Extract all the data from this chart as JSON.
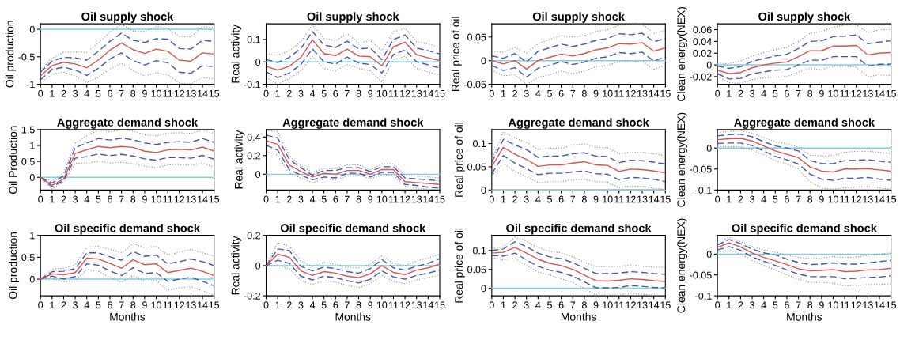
{
  "chart_data": [
    {
      "type": "line",
      "title": "Oil supply shock",
      "ylabel": "Oil production",
      "x": [
        0,
        1,
        2,
        3,
        4,
        5,
        6,
        7,
        8,
        9,
        10,
        11,
        12,
        13,
        14,
        15
      ],
      "xlim": [
        0,
        15
      ],
      "xticks": [
        0,
        1,
        2,
        3,
        4,
        5,
        6,
        7,
        8,
        9,
        10,
        11,
        12,
        13,
        14,
        15
      ],
      "ylim": [
        -1,
        0.1
      ],
      "yticks": [
        -1,
        -0.5,
        0
      ],
      "ref_lines": [
        {
          "axis": "y",
          "value": 0,
          "color": "#7fcfe6"
        }
      ],
      "series": [
        {
          "color": "#888888",
          "line_style": "dotted",
          "values": [
            -0.75,
            -0.52,
            -0.42,
            -0.41,
            -0.42,
            -0.25,
            -0.05,
            0.09,
            -0.03,
            -0.04,
            0.05,
            0.02,
            -0.13,
            -0.14,
            0.05,
            0.03
          ]
        },
        {
          "color": "#888888",
          "line_style": "dotted",
          "values": [
            -0.98,
            -0.82,
            -0.78,
            -0.85,
            -0.97,
            -0.87,
            -0.72,
            -0.62,
            -0.75,
            -0.85,
            -0.79,
            -0.83,
            -0.98,
            -0.99,
            -0.88,
            -0.9
          ]
        },
        {
          "color": "#4455b0",
          "line_style": "dashed",
          "values": [
            -0.78,
            -0.58,
            -0.51,
            -0.52,
            -0.56,
            -0.4,
            -0.22,
            -0.07,
            -0.2,
            -0.24,
            -0.17,
            -0.18,
            -0.35,
            -0.36,
            -0.2,
            -0.22
          ]
        },
        {
          "color": "#4455b0",
          "line_style": "dashed",
          "values": [
            -0.92,
            -0.73,
            -0.69,
            -0.74,
            -0.84,
            -0.71,
            -0.54,
            -0.43,
            -0.57,
            -0.65,
            -0.57,
            -0.61,
            -0.78,
            -0.8,
            -0.66,
            -0.68
          ]
        },
        {
          "color": "#d9534f",
          "line_style": "solid",
          "values": [
            -0.85,
            -0.66,
            -0.6,
            -0.63,
            -0.7,
            -0.56,
            -0.38,
            -0.25,
            -0.37,
            -0.44,
            -0.36,
            -0.4,
            -0.56,
            -0.58,
            -0.43,
            -0.45
          ]
        }
      ]
    },
    {
      "type": "line",
      "title": "Oil supply shock",
      "ylabel": "Real activity",
      "x": [
        0,
        1,
        2,
        3,
        4,
        5,
        6,
        7,
        8,
        9,
        10,
        11,
        12,
        13,
        14,
        15
      ],
      "xlim": [
        0,
        15
      ],
      "xticks": [
        0,
        1,
        2,
        3,
        4,
        5,
        6,
        7,
        8,
        9,
        10,
        11,
        12,
        13,
        14,
        15
      ],
      "ylim": [
        -0.1,
        0.17
      ],
      "yticks": [
        -0.1,
        0,
        0.1
      ],
      "ref_lines": [
        {
          "axis": "y",
          "value": 0,
          "color": "#7fcfe6"
        }
      ],
      "series": [
        {
          "color": "#888888",
          "line_style": "dotted",
          "values": [
            0.035,
            0.03,
            0.05,
            0.09,
            0.165,
            0.105,
            0.095,
            0.125,
            0.085,
            0.095,
            0.05,
            0.135,
            0.15,
            0.09,
            0.08,
            0.065
          ]
        },
        {
          "color": "#888888",
          "line_style": "dotted",
          "values": [
            -0.07,
            -0.1,
            -0.075,
            -0.04,
            0.025,
            -0.03,
            -0.04,
            -0.012,
            -0.03,
            -0.04,
            -0.09,
            0.01,
            0.025,
            -0.03,
            -0.045,
            -0.06
          ]
        },
        {
          "color": "#4455b0",
          "line_style": "dashed",
          "values": [
            0.01,
            -0.003,
            0.02,
            0.06,
            0.135,
            0.075,
            0.065,
            0.092,
            0.058,
            0.062,
            0.01,
            0.1,
            0.12,
            0.062,
            0.05,
            0.035
          ]
        },
        {
          "color": "#4455b0",
          "line_style": "dashed",
          "values": [
            -0.045,
            -0.07,
            -0.05,
            -0.012,
            0.058,
            0,
            -0.01,
            0.022,
            -0.005,
            -0.012,
            -0.05,
            0.033,
            0.053,
            0,
            -0.013,
            -0.028
          ]
        },
        {
          "color": "#d9534f",
          "line_style": "solid",
          "values": [
            -0.02,
            -0.037,
            -0.02,
            0.02,
            0.098,
            0.037,
            0.028,
            0.057,
            0.026,
            0.023,
            -0.018,
            0.067,
            0.088,
            0.032,
            0.018,
            0.005
          ]
        }
      ]
    },
    {
      "type": "line",
      "title": "Oil supply shock",
      "ylabel": "Real price of oil",
      "x": [
        0,
        1,
        2,
        3,
        4,
        5,
        6,
        7,
        8,
        9,
        10,
        11,
        12,
        13,
        14,
        15
      ],
      "xlim": [
        0,
        15
      ],
      "xticks": [
        0,
        1,
        2,
        3,
        4,
        5,
        6,
        7,
        8,
        9,
        10,
        11,
        12,
        13,
        14,
        15
      ],
      "ylim": [
        -0.05,
        0.078
      ],
      "yticks": [
        -0.05,
        0,
        0.05
      ],
      "ref_lines": [
        {
          "axis": "y",
          "value": 0,
          "color": "#7fcfe6"
        }
      ],
      "series": [
        {
          "color": "#888888",
          "line_style": "dotted",
          "values": [
            0.02,
            0.018,
            0.028,
            0.016,
            0.036,
            0.045,
            0.053,
            0.05,
            0.053,
            0.062,
            0.065,
            0.075,
            0.076,
            0.077,
            0.058,
            0.064
          ]
        },
        {
          "color": "#888888",
          "line_style": "dotted",
          "values": [
            -0.02,
            -0.032,
            -0.03,
            -0.05,
            -0.036,
            -0.03,
            -0.022,
            -0.028,
            -0.022,
            -0.013,
            -0.01,
            -0.002,
            -0.002,
            -0.001,
            -0.018,
            -0.01
          ]
        },
        {
          "color": "#4455b0",
          "line_style": "dashed",
          "values": [
            0.01,
            0.005,
            0.015,
            -0.003,
            0.02,
            0.027,
            0.035,
            0.03,
            0.035,
            0.043,
            0.047,
            0.057,
            0.055,
            0.058,
            0.04,
            0.047
          ]
        },
        {
          "color": "#4455b0",
          "line_style": "dashed",
          "values": [
            -0.01,
            -0.021,
            -0.015,
            -0.035,
            -0.016,
            -0.01,
            -0.002,
            -0.008,
            -0.003,
            0.005,
            0.008,
            0.017,
            0.015,
            0.018,
            -0.001,
            0.008
          ]
        },
        {
          "color": "#d9534f",
          "line_style": "solid",
          "values": [
            0,
            -0.007,
            0,
            -0.018,
            0,
            0.007,
            0.014,
            0.01,
            0.015,
            0.023,
            0.027,
            0.036,
            0.035,
            0.038,
            0.02,
            0.027
          ]
        }
      ]
    },
    {
      "type": "line",
      "title": "Oil supply shock",
      "ylabel": "Clean energy(NEX)",
      "x": [
        0,
        1,
        2,
        3,
        4,
        5,
        6,
        7,
        8,
        9,
        10,
        11,
        12,
        13,
        14,
        15
      ],
      "xlim": [
        0,
        15
      ],
      "xticks": [
        0,
        1,
        2,
        3,
        4,
        5,
        6,
        7,
        8,
        9,
        10,
        11,
        12,
        13,
        14,
        15
      ],
      "ylim": [
        -0.033,
        0.07
      ],
      "yticks": [
        -0.02,
        0,
        0.02,
        0.04,
        0.06
      ],
      "ref_lines": [
        {
          "axis": "y",
          "value": 0,
          "color": "#7fcfe6"
        }
      ],
      "series": [
        {
          "color": "#888888",
          "line_style": "dotted",
          "values": [
            0.003,
            0.002,
            0.007,
            0.015,
            0.021,
            0.026,
            0.03,
            0.04,
            0.054,
            0.057,
            0.064,
            0.068,
            0.068,
            0.055,
            0.06,
            0.06
          ]
        },
        {
          "color": "#888888",
          "line_style": "dotted",
          "values": [
            -0.02,
            -0.03,
            -0.032,
            -0.025,
            -0.022,
            -0.021,
            -0.02,
            -0.012,
            -0.006,
            -0.008,
            -0.002,
            -0.002,
            -0.004,
            -0.02,
            -0.017,
            -0.018
          ]
        },
        {
          "color": "#4455b0",
          "line_style": "dashed",
          "values": [
            -0.002,
            -0.006,
            -0.003,
            0.006,
            0.011,
            0.015,
            0.018,
            0.028,
            0.04,
            0.041,
            0.048,
            0.049,
            0.051,
            0.036,
            0.039,
            0.041
          ]
        },
        {
          "color": "#4455b0",
          "line_style": "dashed",
          "values": [
            -0.015,
            -0.024,
            -0.023,
            -0.015,
            -0.012,
            -0.009,
            -0.008,
            0,
            0.008,
            0.008,
            0.014,
            0.014,
            0.014,
            -0.002,
            0.001,
            0.001
          ]
        },
        {
          "color": "#d9534f",
          "line_style": "solid",
          "values": [
            -0.009,
            -0.015,
            -0.013,
            -0.005,
            0,
            0.003,
            0.005,
            0.014,
            0.024,
            0.024,
            0.032,
            0.032,
            0.033,
            0.017,
            0.02,
            0.021
          ]
        }
      ]
    },
    {
      "type": "line",
      "title": "Aggregate demand shock",
      "ylabel": "Oil Production",
      "x": [
        0,
        1,
        2,
        3,
        4,
        5,
        6,
        7,
        8,
        9,
        10,
        11,
        12,
        13,
        14,
        15
      ],
      "xlim": [
        0,
        15
      ],
      "xticks": [
        0,
        1,
        2,
        3,
        4,
        5,
        6,
        7,
        8,
        9,
        10,
        11,
        12,
        13,
        14,
        15
      ],
      "ylim": [
        -0.4,
        1.5
      ],
      "yticks": [
        0,
        0.5,
        1,
        1.5
      ],
      "ref_lines": [
        {
          "axis": "y",
          "value": 0,
          "color": "#7fcfe6"
        }
      ],
      "series": [
        {
          "color": "#888888",
          "line_style": "dotted",
          "values": [
            0,
            -0.12,
            0.15,
            1.07,
            1.3,
            1.48,
            1.44,
            1.49,
            1.45,
            1.34,
            1.3,
            1.39,
            1.4,
            1.38,
            1.49,
            1.38
          ]
        },
        {
          "color": "#888888",
          "line_style": "dotted",
          "values": [
            0,
            -0.37,
            -0.15,
            0.44,
            0.45,
            0.5,
            0.45,
            0.47,
            0.43,
            0.35,
            0.3,
            0.39,
            0.4,
            0.38,
            0.44,
            0.32
          ]
        },
        {
          "color": "#4455b0",
          "line_style": "dashed",
          "values": [
            0,
            -0.18,
            0.05,
            0.93,
            1.08,
            1.22,
            1.17,
            1.23,
            1.18,
            1.08,
            1.03,
            1.1,
            1.12,
            1.1,
            1.22,
            1.1
          ]
        },
        {
          "color": "#4455b0",
          "line_style": "dashed",
          "values": [
            0,
            -0.3,
            -0.1,
            0.6,
            0.65,
            0.73,
            0.68,
            0.72,
            0.67,
            0.58,
            0.54,
            0.62,
            0.62,
            0.6,
            0.69,
            0.57
          ]
        },
        {
          "color": "#d9534f",
          "line_style": "solid",
          "values": [
            0,
            -0.25,
            -0.05,
            0.75,
            0.87,
            0.97,
            0.93,
            0.97,
            0.94,
            0.82,
            0.78,
            0.86,
            0.88,
            0.86,
            0.95,
            0.82
          ]
        }
      ]
    },
    {
      "type": "line",
      "title": "Aggregate demand shock",
      "ylabel": "Real activity",
      "x": [
        0,
        1,
        2,
        3,
        4,
        5,
        6,
        7,
        8,
        9,
        10,
        11,
        12,
        13,
        14,
        15
      ],
      "xlim": [
        0,
        15
      ],
      "xticks": [
        0,
        1,
        2,
        3,
        4,
        5,
        6,
        7,
        8,
        9,
        10,
        11,
        12,
        13,
        14,
        15
      ],
      "ylim": [
        -0.17,
        0.48
      ],
      "yticks": [
        0,
        0.2,
        0.4
      ],
      "ref_lines": [
        {
          "axis": "y",
          "value": 0,
          "color": "#7fcfe6"
        }
      ],
      "series": [
        {
          "color": "#888888",
          "line_style": "dotted",
          "values": [
            0.47,
            0.46,
            0.2,
            0.09,
            0.02,
            0.06,
            0.06,
            0.1,
            0.1,
            0.05,
            0.11,
            0.11,
            -0.01,
            -0.02,
            -0.03,
            -0.04
          ]
        },
        {
          "color": "#888888",
          "line_style": "dotted",
          "values": [
            0.25,
            0.2,
            0.01,
            -0.04,
            -0.09,
            -0.05,
            -0.06,
            -0.02,
            -0.01,
            -0.05,
            -0.01,
            -0.01,
            -0.13,
            -0.15,
            -0.16,
            -0.17
          ]
        },
        {
          "color": "#4455b0",
          "line_style": "dashed",
          "values": [
            0.42,
            0.39,
            0.16,
            0.07,
            -0.01,
            0.04,
            0.04,
            0.07,
            0.07,
            0.03,
            0.08,
            0.08,
            -0.04,
            -0.05,
            -0.06,
            -0.07
          ]
        },
        {
          "color": "#4455b0",
          "line_style": "dashed",
          "values": [
            0.31,
            0.26,
            0.05,
            -0.01,
            -0.06,
            -0.03,
            -0.04,
            0.01,
            0.01,
            -0.03,
            0.02,
            0.02,
            -0.11,
            -0.12,
            -0.14,
            -0.15
          ]
        },
        {
          "color": "#d9534f",
          "line_style": "solid",
          "values": [
            0.36,
            0.32,
            0.1,
            0.03,
            -0.03,
            0.01,
            0,
            0.04,
            0.04,
            0,
            0.05,
            0.05,
            -0.08,
            -0.09,
            -0.1,
            -0.11
          ]
        }
      ]
    },
    {
      "type": "line",
      "title": "Aggregate demand shock",
      "ylabel": "Real price of oil",
      "x": [
        0,
        1,
        2,
        3,
        4,
        5,
        6,
        7,
        8,
        9,
        10,
        11,
        12,
        13,
        14,
        15
      ],
      "xlim": [
        0,
        15
      ],
      "xticks": [
        0,
        1,
        2,
        3,
        4,
        5,
        6,
        7,
        8,
        9,
        10,
        11,
        12,
        13,
        14,
        15
      ],
      "ylim": [
        0,
        0.13
      ],
      "yticks": [
        0,
        0.05,
        0.1
      ],
      "ref_lines": [
        {
          "axis": "y",
          "value": 0,
          "color": "#7fcfe6"
        }
      ],
      "series": [
        {
          "color": "#888888",
          "line_style": "dotted",
          "values": [
            0.065,
            0.125,
            0.112,
            0.102,
            0.087,
            0.09,
            0.09,
            0.097,
            0.099,
            0.092,
            0.091,
            0.078,
            0.081,
            0.081,
            0.078,
            0.074
          ]
        },
        {
          "color": "#888888",
          "line_style": "dotted",
          "values": [
            0.03,
            0.057,
            0.04,
            0.029,
            0.016,
            0.018,
            0.018,
            0.022,
            0.023,
            0.018,
            0.017,
            0.005,
            0.009,
            0.008,
            0.004,
            0.001
          ]
        },
        {
          "color": "#4455b0",
          "line_style": "dashed",
          "values": [
            0.06,
            0.109,
            0.097,
            0.087,
            0.07,
            0.073,
            0.073,
            0.078,
            0.08,
            0.073,
            0.072,
            0.059,
            0.064,
            0.063,
            0.06,
            0.056
          ]
        },
        {
          "color": "#4455b0",
          "line_style": "dashed",
          "values": [
            0.035,
            0.074,
            0.058,
            0.046,
            0.033,
            0.036,
            0.036,
            0.039,
            0.041,
            0.035,
            0.034,
            0.022,
            0.027,
            0.026,
            0.023,
            0.018
          ]
        },
        {
          "color": "#d9534f",
          "line_style": "solid",
          "values": [
            0.05,
            0.092,
            0.077,
            0.066,
            0.051,
            0.054,
            0.054,
            0.058,
            0.061,
            0.054,
            0.053,
            0.04,
            0.045,
            0.044,
            0.041,
            0.037
          ]
        }
      ]
    },
    {
      "type": "line",
      "title": "Aggregate demand shock",
      "ylabel": "Clean energy(NEX)",
      "x": [
        0,
        1,
        2,
        3,
        4,
        5,
        6,
        7,
        8,
        9,
        10,
        11,
        12,
        13,
        14,
        15
      ],
      "xlim": [
        0,
        15
      ],
      "xticks": [
        0,
        1,
        2,
        3,
        4,
        5,
        6,
        7,
        8,
        9,
        10,
        11,
        12,
        13,
        14,
        15
      ],
      "ylim": [
        -0.1,
        0.044
      ],
      "yticks": [
        -0.1,
        -0.05,
        0
      ],
      "ref_lines": [
        {
          "axis": "y",
          "value": 0,
          "color": "#7fcfe6"
        }
      ],
      "series": [
        {
          "color": "#888888",
          "line_style": "dotted",
          "values": [
            0.036,
            0.04,
            0.042,
            0.035,
            0.025,
            0.015,
            0.01,
            0.002,
            -0.017,
            -0.019,
            -0.018,
            -0.01,
            -0.008,
            -0.008,
            -0.01,
            -0.013
          ]
        },
        {
          "color": "#888888",
          "line_style": "dotted",
          "values": [
            0.004,
            0.003,
            0.003,
            -0.005,
            -0.016,
            -0.03,
            -0.038,
            -0.05,
            -0.08,
            -0.095,
            -0.098,
            -0.095,
            -0.093,
            -0.092,
            -0.095,
            -0.098
          ]
        },
        {
          "color": "#4455b0",
          "line_style": "dashed",
          "values": [
            0.029,
            0.032,
            0.033,
            0.027,
            0.015,
            0.005,
            0,
            -0.007,
            -0.03,
            -0.037,
            -0.037,
            -0.03,
            -0.029,
            -0.028,
            -0.031,
            -0.034
          ]
        },
        {
          "color": "#4455b0",
          "line_style": "dashed",
          "values": [
            0.011,
            0.012,
            0.012,
            0.006,
            -0.007,
            -0.02,
            -0.028,
            -0.038,
            -0.062,
            -0.074,
            -0.077,
            -0.072,
            -0.072,
            -0.07,
            -0.074,
            -0.077
          ]
        },
        {
          "color": "#d9534f",
          "line_style": "solid",
          "values": [
            0.02,
            0.022,
            0.023,
            0.017,
            0.005,
            -0.007,
            -0.015,
            -0.023,
            -0.045,
            -0.055,
            -0.057,
            -0.05,
            -0.05,
            -0.049,
            -0.052,
            -0.055
          ]
        }
      ]
    },
    {
      "type": "line",
      "title": "Oil specific demand shock",
      "ylabel": "Oil production",
      "xlabel": "Months",
      "x": [
        0,
        1,
        2,
        3,
        4,
        5,
        6,
        7,
        8,
        9,
        10,
        11,
        12,
        13,
        14,
        15
      ],
      "xlim": [
        0,
        15
      ],
      "xticks": [
        0,
        1,
        2,
        3,
        4,
        5,
        6,
        7,
        8,
        9,
        10,
        11,
        12,
        13,
        14,
        15
      ],
      "ylim": [
        -0.38,
        1
      ],
      "yticks": [
        0,
        0.5,
        1
      ],
      "ref_lines": [
        {
          "axis": "y",
          "value": 0,
          "color": "#7fcfe6"
        }
      ],
      "series": [
        {
          "color": "#888888",
          "line_style": "dotted",
          "values": [
            0,
            0.23,
            0.25,
            0.33,
            0.73,
            0.75,
            0.68,
            0.6,
            0.81,
            0.72,
            0.75,
            0.55,
            0.62,
            0.68,
            0.6,
            0.53
          ]
        },
        {
          "color": "#888888",
          "line_style": "dotted",
          "values": [
            0,
            0.02,
            -0.06,
            -0.04,
            0.22,
            0.18,
            0.04,
            -0.07,
            0.08,
            -0.05,
            -0.03,
            -0.25,
            -0.2,
            -0.17,
            -0.27,
            -0.36
          ]
        },
        {
          "color": "#4455b0",
          "line_style": "dashed",
          "values": [
            0,
            0.17,
            0.18,
            0.24,
            0.6,
            0.6,
            0.51,
            0.43,
            0.63,
            0.52,
            0.55,
            0.35,
            0.4,
            0.46,
            0.4,
            0.31
          ]
        },
        {
          "color": "#4455b0",
          "line_style": "dashed",
          "values": [
            0,
            0.07,
            0,
            0.06,
            0.35,
            0.32,
            0.19,
            0.08,
            0.26,
            0.13,
            0.15,
            -0.05,
            0,
            0.04,
            -0.05,
            -0.15
          ]
        },
        {
          "color": "#d9534f",
          "line_style": "solid",
          "values": [
            0,
            0.12,
            0.1,
            0.15,
            0.48,
            0.46,
            0.36,
            0.25,
            0.44,
            0.33,
            0.35,
            0.15,
            0.2,
            0.25,
            0.18,
            0.08
          ]
        }
      ]
    },
    {
      "type": "line",
      "title": "Oil specific demand shock",
      "ylabel": "Real activity",
      "xlabel": "Months",
      "x": [
        0,
        1,
        2,
        3,
        4,
        5,
        6,
        7,
        8,
        9,
        10,
        11,
        12,
        13,
        14,
        15
      ],
      "xlim": [
        0,
        15
      ],
      "xticks": [
        0,
        1,
        2,
        3,
        4,
        5,
        6,
        7,
        8,
        9,
        10,
        11,
        12,
        13,
        14,
        15
      ],
      "ylim": [
        -0.2,
        0.2
      ],
      "yticks": [
        -0.2,
        0,
        0.2
      ],
      "ref_lines": [
        {
          "axis": "y",
          "value": 0,
          "color": "#7fcfe6"
        }
      ],
      "series": [
        {
          "color": "#888888",
          "line_style": "dotted",
          "values": [
            0,
            0.15,
            0.13,
            0.03,
            -0.005,
            0.02,
            0.01,
            -0.01,
            -0.015,
            0.01,
            0.065,
            0.015,
            0,
            0.03,
            0.05,
            0.075
          ]
        },
        {
          "color": "#888888",
          "line_style": "dotted",
          "values": [
            0,
            0,
            -0.02,
            -0.1,
            -0.125,
            -0.1,
            -0.11,
            -0.13,
            -0.145,
            -0.12,
            -0.065,
            -0.105,
            -0.12,
            -0.095,
            -0.08,
            -0.06
          ]
        },
        {
          "color": "#4455b0",
          "line_style": "dashed",
          "values": [
            0,
            0.11,
            0.1,
            -0.005,
            -0.035,
            -0.01,
            -0.02,
            -0.04,
            -0.05,
            -0.02,
            0.04,
            -0.015,
            -0.03,
            -0.005,
            0.015,
            0.045
          ]
        },
        {
          "color": "#4455b0",
          "line_style": "dashed",
          "values": [
            0,
            0.035,
            0.015,
            -0.07,
            -0.095,
            -0.07,
            -0.08,
            -0.1,
            -0.115,
            -0.09,
            -0.035,
            -0.075,
            -0.09,
            -0.065,
            -0.05,
            -0.03
          ]
        },
        {
          "color": "#d9534f",
          "line_style": "solid",
          "values": [
            0,
            0.075,
            0.055,
            -0.035,
            -0.065,
            -0.04,
            -0.05,
            -0.07,
            -0.08,
            -0.055,
            0,
            -0.045,
            -0.06,
            -0.03,
            -0.015,
            0.01
          ]
        }
      ]
    },
    {
      "type": "line",
      "title": "Oil specific demand shock",
      "ylabel": "Real price of oil",
      "xlabel": "Months",
      "x": [
        0,
        1,
        2,
        3,
        4,
        5,
        6,
        7,
        8,
        9,
        10,
        11,
        12,
        13,
        14,
        15
      ],
      "xlim": [
        0,
        15
      ],
      "xticks": [
        0,
        1,
        2,
        3,
        4,
        5,
        6,
        7,
        8,
        9,
        10,
        11,
        12,
        13,
        14,
        15
      ],
      "ylim": [
        -0.02,
        0.14
      ],
      "yticks": [
        0,
        0.05,
        0.1
      ],
      "ref_lines": [
        {
          "axis": "y",
          "value": 0,
          "color": "#7fcfe6"
        }
      ],
      "series": [
        {
          "color": "#888888",
          "line_style": "dotted",
          "values": [
            0.105,
            0.11,
            0.135,
            0.125,
            0.107,
            0.098,
            0.094,
            0.083,
            0.069,
            0.057,
            0.057,
            0.058,
            0.062,
            0.058,
            0.056,
            0.055
          ]
        },
        {
          "color": "#888888",
          "line_style": "dotted",
          "values": [
            0.082,
            0.075,
            0.079,
            0.06,
            0.043,
            0.035,
            0.025,
            0.015,
            0,
            -0.018,
            -0.018,
            -0.018,
            -0.013,
            -0.016,
            -0.018,
            -0.019
          ]
        },
        {
          "color": "#4455b0",
          "line_style": "dashed",
          "values": [
            0.1,
            0.104,
            0.123,
            0.11,
            0.093,
            0.083,
            0.078,
            0.068,
            0.053,
            0.039,
            0.039,
            0.04,
            0.044,
            0.042,
            0.039,
            0.037
          ]
        },
        {
          "color": "#4455b0",
          "line_style": "dashed",
          "values": [
            0.087,
            0.085,
            0.093,
            0.075,
            0.058,
            0.048,
            0.042,
            0.032,
            0.017,
            0.001,
            0.001,
            0.002,
            0.007,
            0.005,
            0.002,
            0.001
          ]
        },
        {
          "color": "#d9534f",
          "line_style": "solid",
          "values": [
            0.093,
            0.095,
            0.108,
            0.093,
            0.077,
            0.066,
            0.06,
            0.05,
            0.035,
            0.02,
            0.019,
            0.021,
            0.025,
            0.023,
            0.02,
            0.018
          ]
        }
      ]
    },
    {
      "type": "line",
      "title": "Oil specific demand shock",
      "ylabel": "Clean energy(NEX)",
      "xlabel": "Months",
      "x": [
        0,
        1,
        2,
        3,
        4,
        5,
        6,
        7,
        8,
        9,
        10,
        11,
        12,
        13,
        14,
        15
      ],
      "xlim": [
        0,
        15
      ],
      "xticks": [
        0,
        1,
        2,
        3,
        4,
        5,
        6,
        7,
        8,
        9,
        10,
        11,
        12,
        13,
        14,
        15
      ],
      "ylim": [
        -0.1,
        0.045
      ],
      "yticks": [
        -0.1,
        -0.05,
        0
      ],
      "ref_lines": [
        {
          "axis": "y",
          "value": 0,
          "color": "#7fcfe6"
        }
      ],
      "series": [
        {
          "color": "#888888",
          "line_style": "dotted",
          "values": [
            0.028,
            0.04,
            0.03,
            0.018,
            0.01,
            0.005,
            -0.002,
            -0.008,
            -0.011,
            -0.01,
            -0.006,
            -0.008,
            -0.007,
            -0.003,
            0,
            0.003
          ]
        },
        {
          "color": "#888888",
          "line_style": "dotted",
          "values": [
            0.004,
            0.01,
            0,
            -0.015,
            -0.027,
            -0.038,
            -0.05,
            -0.06,
            -0.068,
            -0.068,
            -0.07,
            -0.076,
            -0.075,
            -0.073,
            -0.073,
            -0.071
          ]
        },
        {
          "color": "#4455b0",
          "line_style": "dashed",
          "values": [
            0.022,
            0.035,
            0.025,
            0.012,
            0.003,
            -0.002,
            -0.012,
            -0.02,
            -0.025,
            -0.024,
            -0.021,
            -0.024,
            -0.024,
            -0.021,
            -0.018,
            -0.015
          ]
        },
        {
          "color": "#4455b0",
          "line_style": "dashed",
          "values": [
            0.01,
            0.018,
            0.009,
            -0.007,
            -0.017,
            -0.027,
            -0.038,
            -0.048,
            -0.054,
            -0.054,
            -0.054,
            -0.059,
            -0.058,
            -0.056,
            -0.055,
            -0.052
          ]
        },
        {
          "color": "#d9534f",
          "line_style": "solid",
          "values": [
            0.016,
            0.027,
            0.017,
            0.003,
            -0.008,
            -0.016,
            -0.025,
            -0.035,
            -0.04,
            -0.039,
            -0.037,
            -0.042,
            -0.041,
            -0.038,
            -0.037,
            -0.034
          ]
        }
      ]
    }
  ]
}
